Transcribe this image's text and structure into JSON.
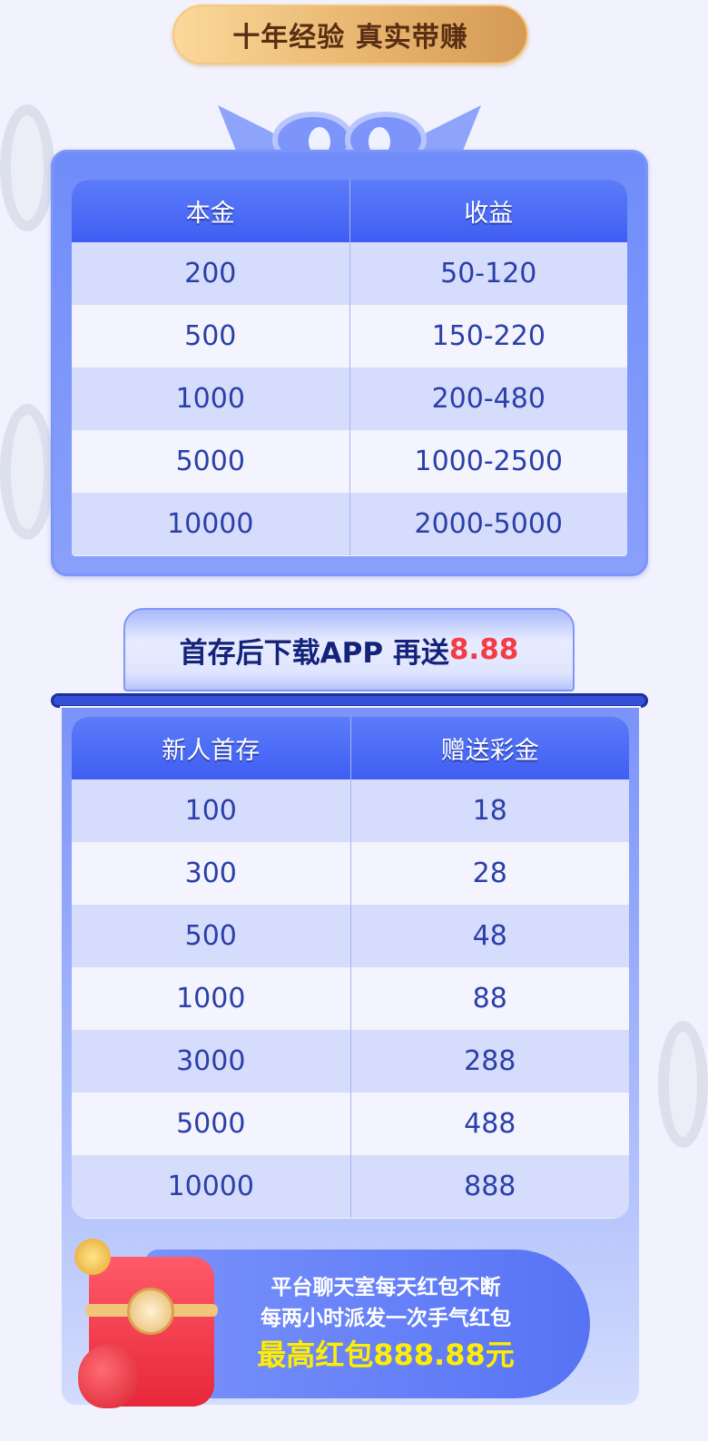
{
  "header": {
    "badge": "十年经验 真实带赚"
  },
  "table1": {
    "headers": [
      "本金",
      "收益"
    ],
    "rows": [
      [
        "200",
        "50-120"
      ],
      [
        "500",
        "150-220"
      ],
      [
        "1000",
        "200-480"
      ],
      [
        "5000",
        "1000-2500"
      ],
      [
        "10000",
        "2000-5000"
      ]
    ]
  },
  "banner2": {
    "text": "首存后下载APP 再送",
    "highlight": "8.88"
  },
  "table2": {
    "headers": [
      "新人首存",
      "赠送彩金"
    ],
    "rows": [
      [
        "100",
        "18"
      ],
      [
        "300",
        "28"
      ],
      [
        "500",
        "48"
      ],
      [
        "1000",
        "88"
      ],
      [
        "3000",
        "288"
      ],
      [
        "5000",
        "488"
      ],
      [
        "10000",
        "888"
      ]
    ]
  },
  "promo": {
    "line1": "平台聊天室每天红包不断",
    "line2": "每两小时派发一次手气红包",
    "line3": "最高红包888.88元"
  },
  "colors": {
    "header_blue": "#4a6af6",
    "text_blue": "#2a3fa8",
    "accent_red": "#f33c45",
    "yellow": "#ffee00",
    "gold": "#e9b872"
  }
}
